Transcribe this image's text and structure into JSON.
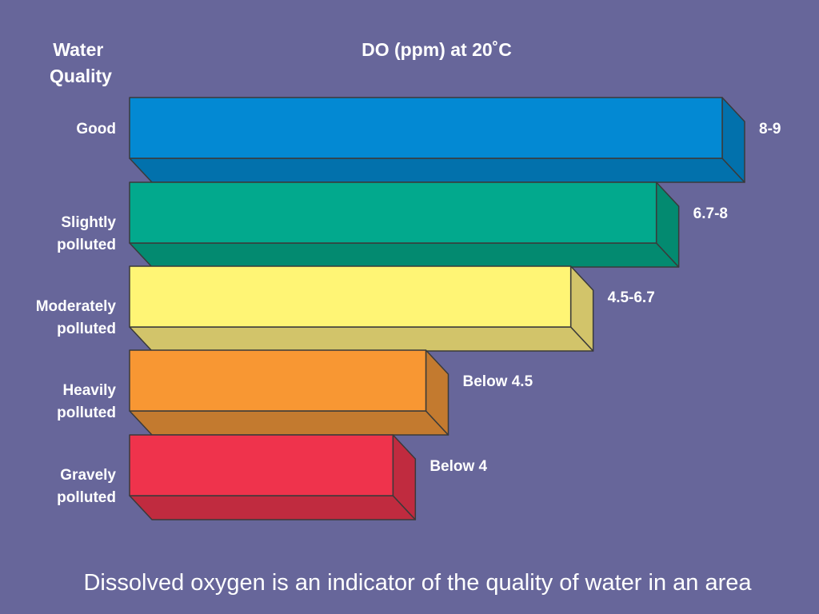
{
  "chart_data": {
    "type": "bar",
    "orientation": "horizontal",
    "style": "3d",
    "column_header": [
      "Water",
      "Quality"
    ],
    "value_header": "DO (ppm) at 20˚C",
    "categories": [
      [
        "Good"
      ],
      [
        "Slightly",
        "polluted"
      ],
      [
        "Moderately",
        "polluted"
      ],
      [
        "Heavily",
        "polluted"
      ],
      [
        "Gravely",
        "polluted"
      ]
    ],
    "value_labels": [
      "8-9",
      "6.7-8",
      "4.5-6.7",
      "Below 4.5",
      "Below 4"
    ],
    "values": [
      9,
      8,
      6.7,
      4.5,
      4
    ],
    "xlim": [
      0,
      9
    ],
    "grid": false,
    "legend": "none",
    "colors": {
      "front": [
        "#0389d3",
        "#02a98d",
        "#fff575",
        "#f89733",
        "#ef334c"
      ],
      "side": [
        "#0271ac",
        "#038a70",
        "#d2c46a",
        "#c37a2f",
        "#c02b3f"
      ],
      "edge": "#3a3a3a",
      "background": "#67669a",
      "text": "#ffffff"
    }
  },
  "caption": "Dissolved oxygen is an indicator of the quality of water in an area"
}
